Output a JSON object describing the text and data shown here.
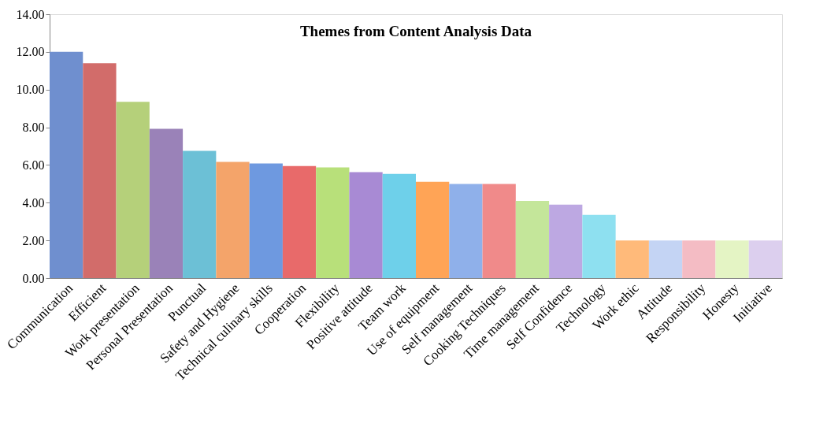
{
  "chart_data": {
    "type": "bar",
    "title": "Themes from Content Analysis Data",
    "categories": [
      "Communication",
      "Efficient",
      "Work presentation",
      "Personal Presentation",
      "Punctual",
      "Safety and Hygiene",
      "Technical culinary skills",
      "Cooperation",
      "Flexibility",
      "Positive attitude",
      "Team work",
      "Use of equipment",
      "Self management",
      "Cooking Techniques",
      "Time management",
      "Self Confidence",
      "Technology",
      "Work ethic",
      "Attitude",
      "Responsibility",
      "Honesty",
      "Initiative"
    ],
    "values": [
      12.0,
      11.4,
      9.35,
      7.92,
      6.75,
      6.16,
      6.08,
      5.95,
      5.87,
      5.62,
      5.53,
      5.11,
      4.99,
      4.99,
      4.1,
      3.9,
      3.35,
      2.0,
      2.0,
      2.0,
      2.0,
      2.0
    ],
    "colors": [
      "#6f8fcf",
      "#d26c6a",
      "#b5d07a",
      "#9a82b8",
      "#6cc0d6",
      "#f4a46a",
      "#6e99e0",
      "#e86a6a",
      "#b8e07a",
      "#a88ad4",
      "#6ed0ea",
      "#ffa456",
      "#8fb0ea",
      "#f08a8a",
      "#c4e69a",
      "#bda8e2",
      "#8ee0f0",
      "#ffba7a",
      "#c4d4f4",
      "#f4bcc4",
      "#e4f4c4",
      "#dccfee"
    ],
    "ylim": [
      0,
      14
    ],
    "yticks": [
      {
        "value": 0,
        "label": "0.00"
      },
      {
        "value": 2,
        "label": "2.00"
      },
      {
        "value": 4,
        "label": "4.00"
      },
      {
        "value": 6,
        "label": "6.00"
      },
      {
        "value": 8,
        "label": "8.00"
      },
      {
        "value": 10,
        "label": "10.00"
      },
      {
        "value": 12,
        "label": "12.00"
      },
      {
        "value": 14,
        "label": "14.00"
      }
    ],
    "grid": false
  }
}
